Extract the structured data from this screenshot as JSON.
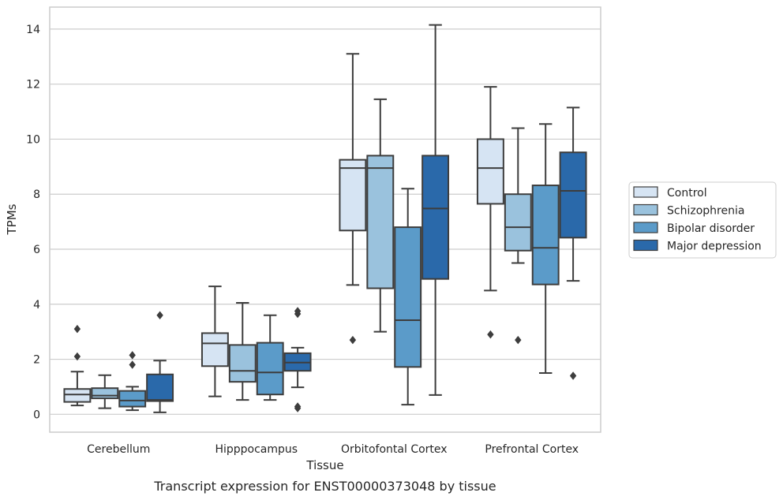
{
  "caption": "Transcript expression for ENST00000373048 by tissue",
  "chart_data": {
    "type": "box",
    "xlabel": "Tissue",
    "ylabel": "TPMs",
    "ylim": [
      -0.65,
      14.8
    ],
    "yticks": [
      0,
      2,
      4,
      6,
      8,
      10,
      12,
      14
    ],
    "grid": "horizontal",
    "legend_position": "right",
    "categories": [
      "Cerebellum",
      "Hipppocampus",
      "Orbitofontal Cortex",
      "Prefrontal Cortex"
    ],
    "series": [
      {
        "name": "Control",
        "color": "#d6e4f3",
        "boxes": [
          {
            "whislo": 0.32,
            "q1": 0.45,
            "med": 0.72,
            "q3": 0.92,
            "whishi": 1.55,
            "fliers": [
              2.1,
              3.1
            ]
          },
          {
            "whislo": 0.65,
            "q1": 1.75,
            "med": 2.58,
            "q3": 2.95,
            "whishi": 4.65,
            "fliers": []
          },
          {
            "whislo": 4.7,
            "q1": 6.68,
            "med": 8.95,
            "q3": 9.25,
            "whishi": 13.1,
            "fliers": [
              2.7
            ]
          },
          {
            "whislo": 4.5,
            "q1": 7.65,
            "med": 8.95,
            "q3": 10.0,
            "whishi": 11.9,
            "fliers": [
              2.9
            ]
          }
        ]
      },
      {
        "name": "Schizophrenia",
        "color": "#9ac2dd",
        "boxes": [
          {
            "whislo": 0.22,
            "q1": 0.58,
            "med": 0.68,
            "q3": 0.95,
            "whishi": 1.42,
            "fliers": []
          },
          {
            "whislo": 0.52,
            "q1": 1.18,
            "med": 1.58,
            "q3": 2.52,
            "whishi": 4.05,
            "fliers": []
          },
          {
            "whislo": 3.0,
            "q1": 4.58,
            "med": 8.95,
            "q3": 9.4,
            "whishi": 11.45,
            "fliers": []
          },
          {
            "whislo": 5.5,
            "q1": 5.95,
            "med": 6.8,
            "q3": 8.0,
            "whishi": 10.4,
            "fliers": [
              2.7
            ]
          }
        ]
      },
      {
        "name": "Bipolar disorder",
        "color": "#5b9bc9",
        "boxes": [
          {
            "whislo": 0.15,
            "q1": 0.28,
            "med": 0.5,
            "q3": 0.85,
            "whishi": 1.0,
            "fliers": [
              1.8,
              2.15
            ]
          },
          {
            "whislo": 0.52,
            "q1": 0.72,
            "med": 1.52,
            "q3": 2.6,
            "whishi": 3.6,
            "fliers": []
          },
          {
            "whislo": 0.35,
            "q1": 1.72,
            "med": 3.42,
            "q3": 6.8,
            "whishi": 8.2,
            "fliers": []
          },
          {
            "whislo": 1.5,
            "q1": 4.72,
            "med": 6.05,
            "q3": 8.32,
            "whishi": 10.55,
            "fliers": []
          }
        ]
      },
      {
        "name": "Major depression",
        "color": "#2a69aa",
        "boxes": [
          {
            "whislo": 0.07,
            "q1": 0.48,
            "med": 0.52,
            "q3": 1.45,
            "whishi": 1.95,
            "fliers": [
              3.6
            ]
          },
          {
            "whislo": 0.98,
            "q1": 1.58,
            "med": 1.88,
            "q3": 2.22,
            "whishi": 2.42,
            "fliers": [
              0.22,
              0.28,
              3.65,
              3.75
            ]
          },
          {
            "whislo": 0.7,
            "q1": 4.92,
            "med": 7.48,
            "q3": 9.4,
            "whishi": 14.15,
            "fliers": []
          },
          {
            "whislo": 4.85,
            "q1": 6.42,
            "med": 8.12,
            "q3": 9.52,
            "whishi": 11.15,
            "fliers": [
              1.4
            ]
          }
        ]
      }
    ]
  }
}
